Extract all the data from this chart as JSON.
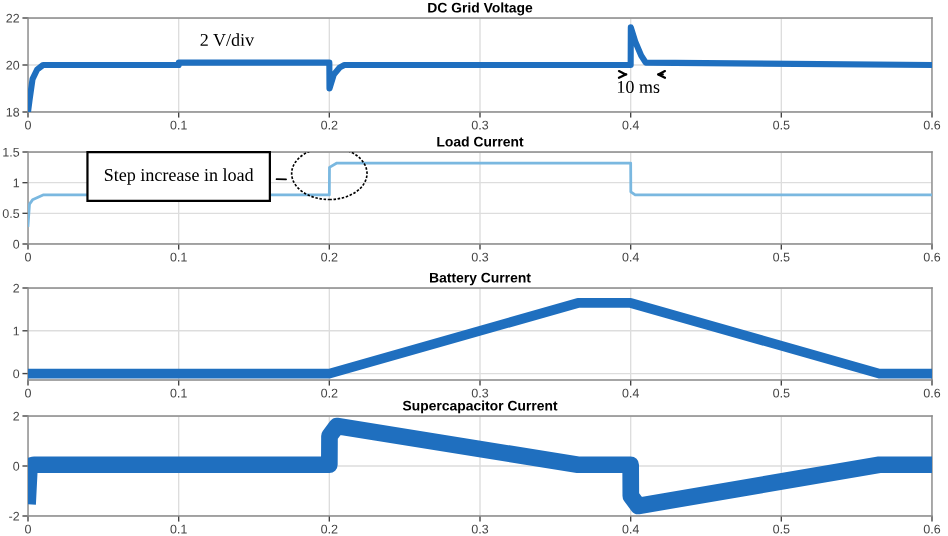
{
  "chart_data": [
    {
      "type": "line",
      "title": "DC Grid Voltage",
      "xlim": [
        0,
        0.6
      ],
      "xticks": [
        0,
        0.1,
        0.2,
        0.3,
        0.4,
        0.5,
        0.6
      ],
      "ylim": [
        18,
        22
      ],
      "yticks": [
        18,
        20,
        22
      ],
      "grid": true,
      "annotations": [
        "2 V/div",
        {
          "text": "10 ms",
          "x": 0.405,
          "y": 20.05
        }
      ],
      "series": [
        {
          "color": "#1f6fbf",
          "x": [
            0,
            0.001,
            0.003,
            0.006,
            0.01,
            0.02,
            0.1,
            0.1001,
            0.2,
            0.2001,
            0.203,
            0.207,
            0.21,
            0.22,
            0.4,
            0.4001,
            0.403,
            0.407,
            0.41,
            0.6
          ],
          "values": [
            18.0,
            18.5,
            19.4,
            19.8,
            20.0,
            20.0,
            20.0,
            20.1,
            20.1,
            19.0,
            19.6,
            19.9,
            20.0,
            20.0,
            20.0,
            21.6,
            21.0,
            20.4,
            20.1,
            20.0
          ]
        }
      ]
    },
    {
      "type": "line",
      "title": "Load Current",
      "xlim": [
        0,
        0.6
      ],
      "xticks": [
        0,
        0.1,
        0.2,
        0.3,
        0.4,
        0.5,
        0.6
      ],
      "ylim": [
        0,
        1.5
      ],
      "yticks": [
        0,
        0.5,
        1,
        1.5
      ],
      "grid": true,
      "annotations": [
        "Step increase in load"
      ],
      "series": [
        {
          "color": "#7ab8e0",
          "x": [
            0,
            0.001,
            0.003,
            0.01,
            0.2,
            0.2001,
            0.205,
            0.4,
            0.4001,
            0.403,
            0.6
          ],
          "values": [
            0.3,
            0.65,
            0.72,
            0.8,
            0.8,
            1.25,
            1.32,
            1.32,
            0.85,
            0.8,
            0.8
          ]
        }
      ]
    },
    {
      "type": "line",
      "title": "Battery Current",
      "xlim": [
        0,
        0.6
      ],
      "xticks": [
        0,
        0.1,
        0.2,
        0.3,
        0.4,
        0.5,
        0.6
      ],
      "ylim": [
        -0.15,
        2
      ],
      "yticks": [
        0,
        1,
        2
      ],
      "grid": true,
      "series": [
        {
          "color": "#1f6fbf",
          "x": [
            0,
            0.2,
            0.365,
            0.4,
            0.565,
            0.6
          ],
          "values": [
            0,
            0,
            1.65,
            1.65,
            0,
            0
          ]
        }
      ]
    },
    {
      "type": "line",
      "title": "Supercapacitor Current",
      "xlim": [
        0,
        0.6
      ],
      "xticks": [
        0,
        0.1,
        0.2,
        0.3,
        0.4,
        0.5,
        0.6
      ],
      "ylim": [
        -2,
        2
      ],
      "yticks": [
        -2,
        0,
        2
      ],
      "grid": true,
      "series": [
        {
          "color": "#1f6fbf",
          "x": [
            0,
            0.001,
            0.004,
            0.2,
            0.2001,
            0.205,
            0.365,
            0.4,
            0.4001,
            0.405,
            0.565,
            0.6
          ],
          "values": [
            -1.2,
            0,
            0.05,
            0.05,
            1.2,
            1.6,
            0.05,
            0.05,
            -1.2,
            -1.6,
            0.05,
            0.05
          ]
        }
      ]
    }
  ]
}
